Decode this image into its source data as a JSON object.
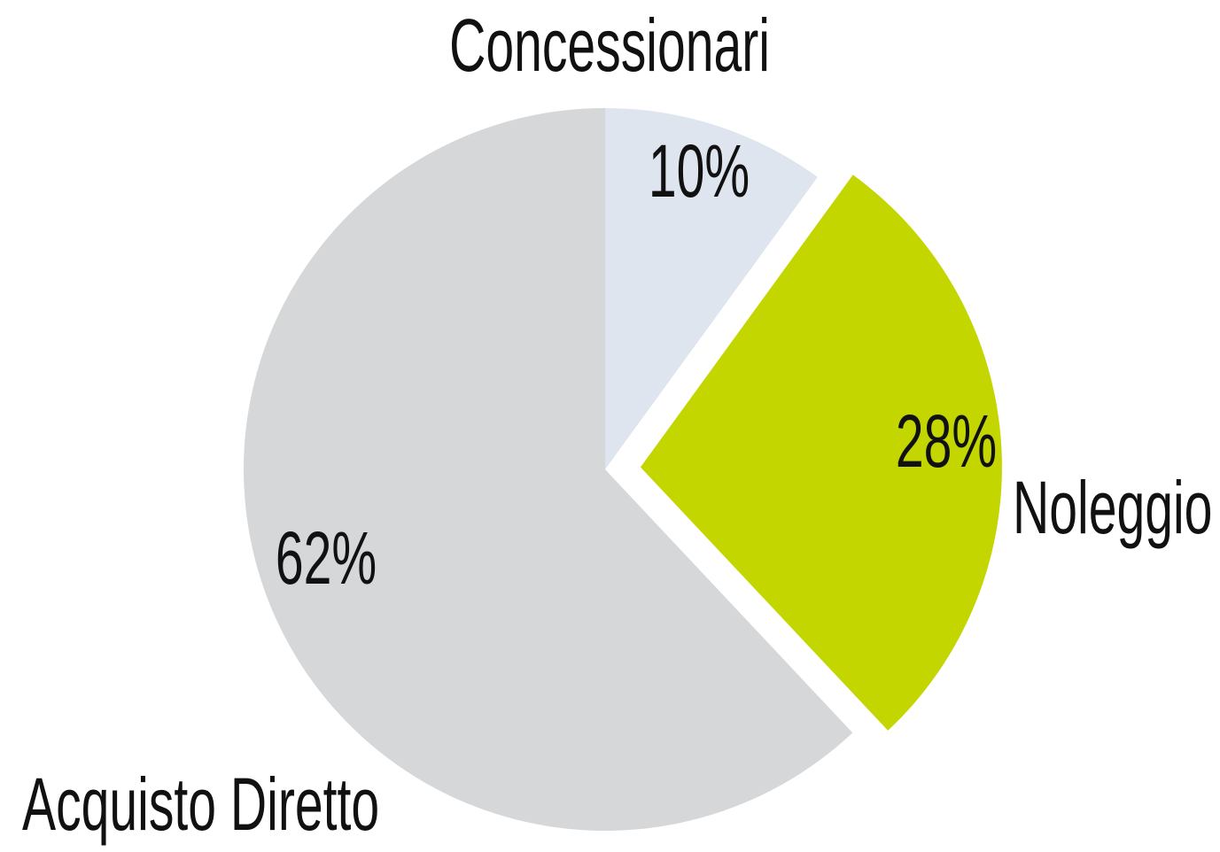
{
  "chart_data": {
    "type": "pie",
    "categories": [
      "Concessionari",
      "Noleggio",
      "Acquisto Diretto"
    ],
    "values": [
      10,
      28,
      62
    ],
    "value_labels": [
      "10%",
      "28%",
      "62%"
    ],
    "colors": [
      "#dfe5ee",
      "#c4d600",
      "#d5d7d9"
    ],
    "exploded": [
      "Noleggio"
    ]
  }
}
